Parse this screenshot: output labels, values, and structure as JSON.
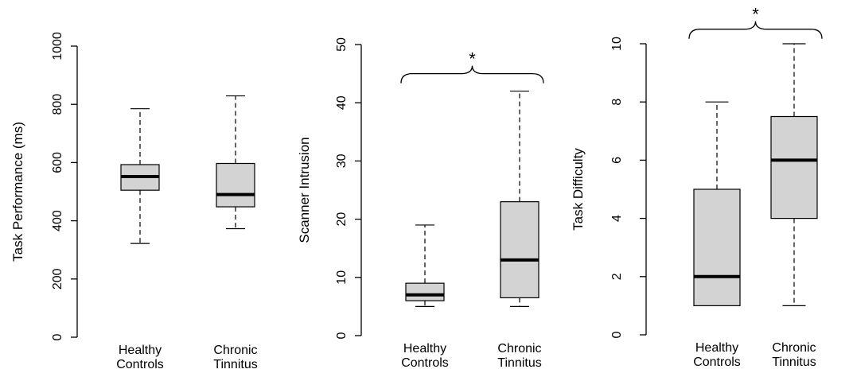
{
  "style": {
    "box_fill": "#d3d3d3",
    "line_color": "#000000"
  },
  "chart_data": [
    {
      "type": "box",
      "ylabel": "Task Performance (ms)",
      "ylim": [
        0,
        1000
      ],
      "yticks": [
        0,
        200,
        400,
        600,
        800,
        1000
      ],
      "categories": [
        "Healthy\nControls",
        "Chronic\nTinnitus"
      ],
      "boxes": [
        {
          "whisker_low": 322,
          "q1": 505,
          "median": 552,
          "q3": 593,
          "whisker_high": 785
        },
        {
          "whisker_low": 373,
          "q1": 448,
          "median": 490,
          "q3": 597,
          "whisker_high": 829
        }
      ],
      "significance": null
    },
    {
      "type": "box",
      "ylabel": "Scanner Intrusion",
      "ylim": [
        0,
        50
      ],
      "yticks": [
        0,
        10,
        20,
        30,
        40,
        50
      ],
      "categories": [
        "Healthy\nControls",
        "Chronic\nTinnitus"
      ],
      "boxes": [
        {
          "whisker_low": 5,
          "q1": 6,
          "median": 7,
          "q3": 9,
          "whisker_high": 19
        },
        {
          "whisker_low": 5,
          "q1": 6.5,
          "median": 13,
          "q3": 23,
          "whisker_high": 42
        }
      ],
      "significance": {
        "label": "*",
        "level": 45
      }
    },
    {
      "type": "box",
      "ylabel": "Task Difficulty",
      "ylim": [
        0,
        10
      ],
      "yticks": [
        0,
        2,
        4,
        6,
        8,
        10
      ],
      "categories": [
        "Healthy\nControls",
        "Chronic\nTinnitus"
      ],
      "boxes": [
        {
          "whisker_low": 1,
          "q1": 1,
          "median": 2,
          "q3": 5,
          "whisker_high": 8
        },
        {
          "whisker_low": 1,
          "q1": 4,
          "median": 6,
          "q3": 7.5,
          "whisker_high": 10
        }
      ],
      "significance": {
        "label": "*",
        "level": 10.5
      }
    }
  ]
}
